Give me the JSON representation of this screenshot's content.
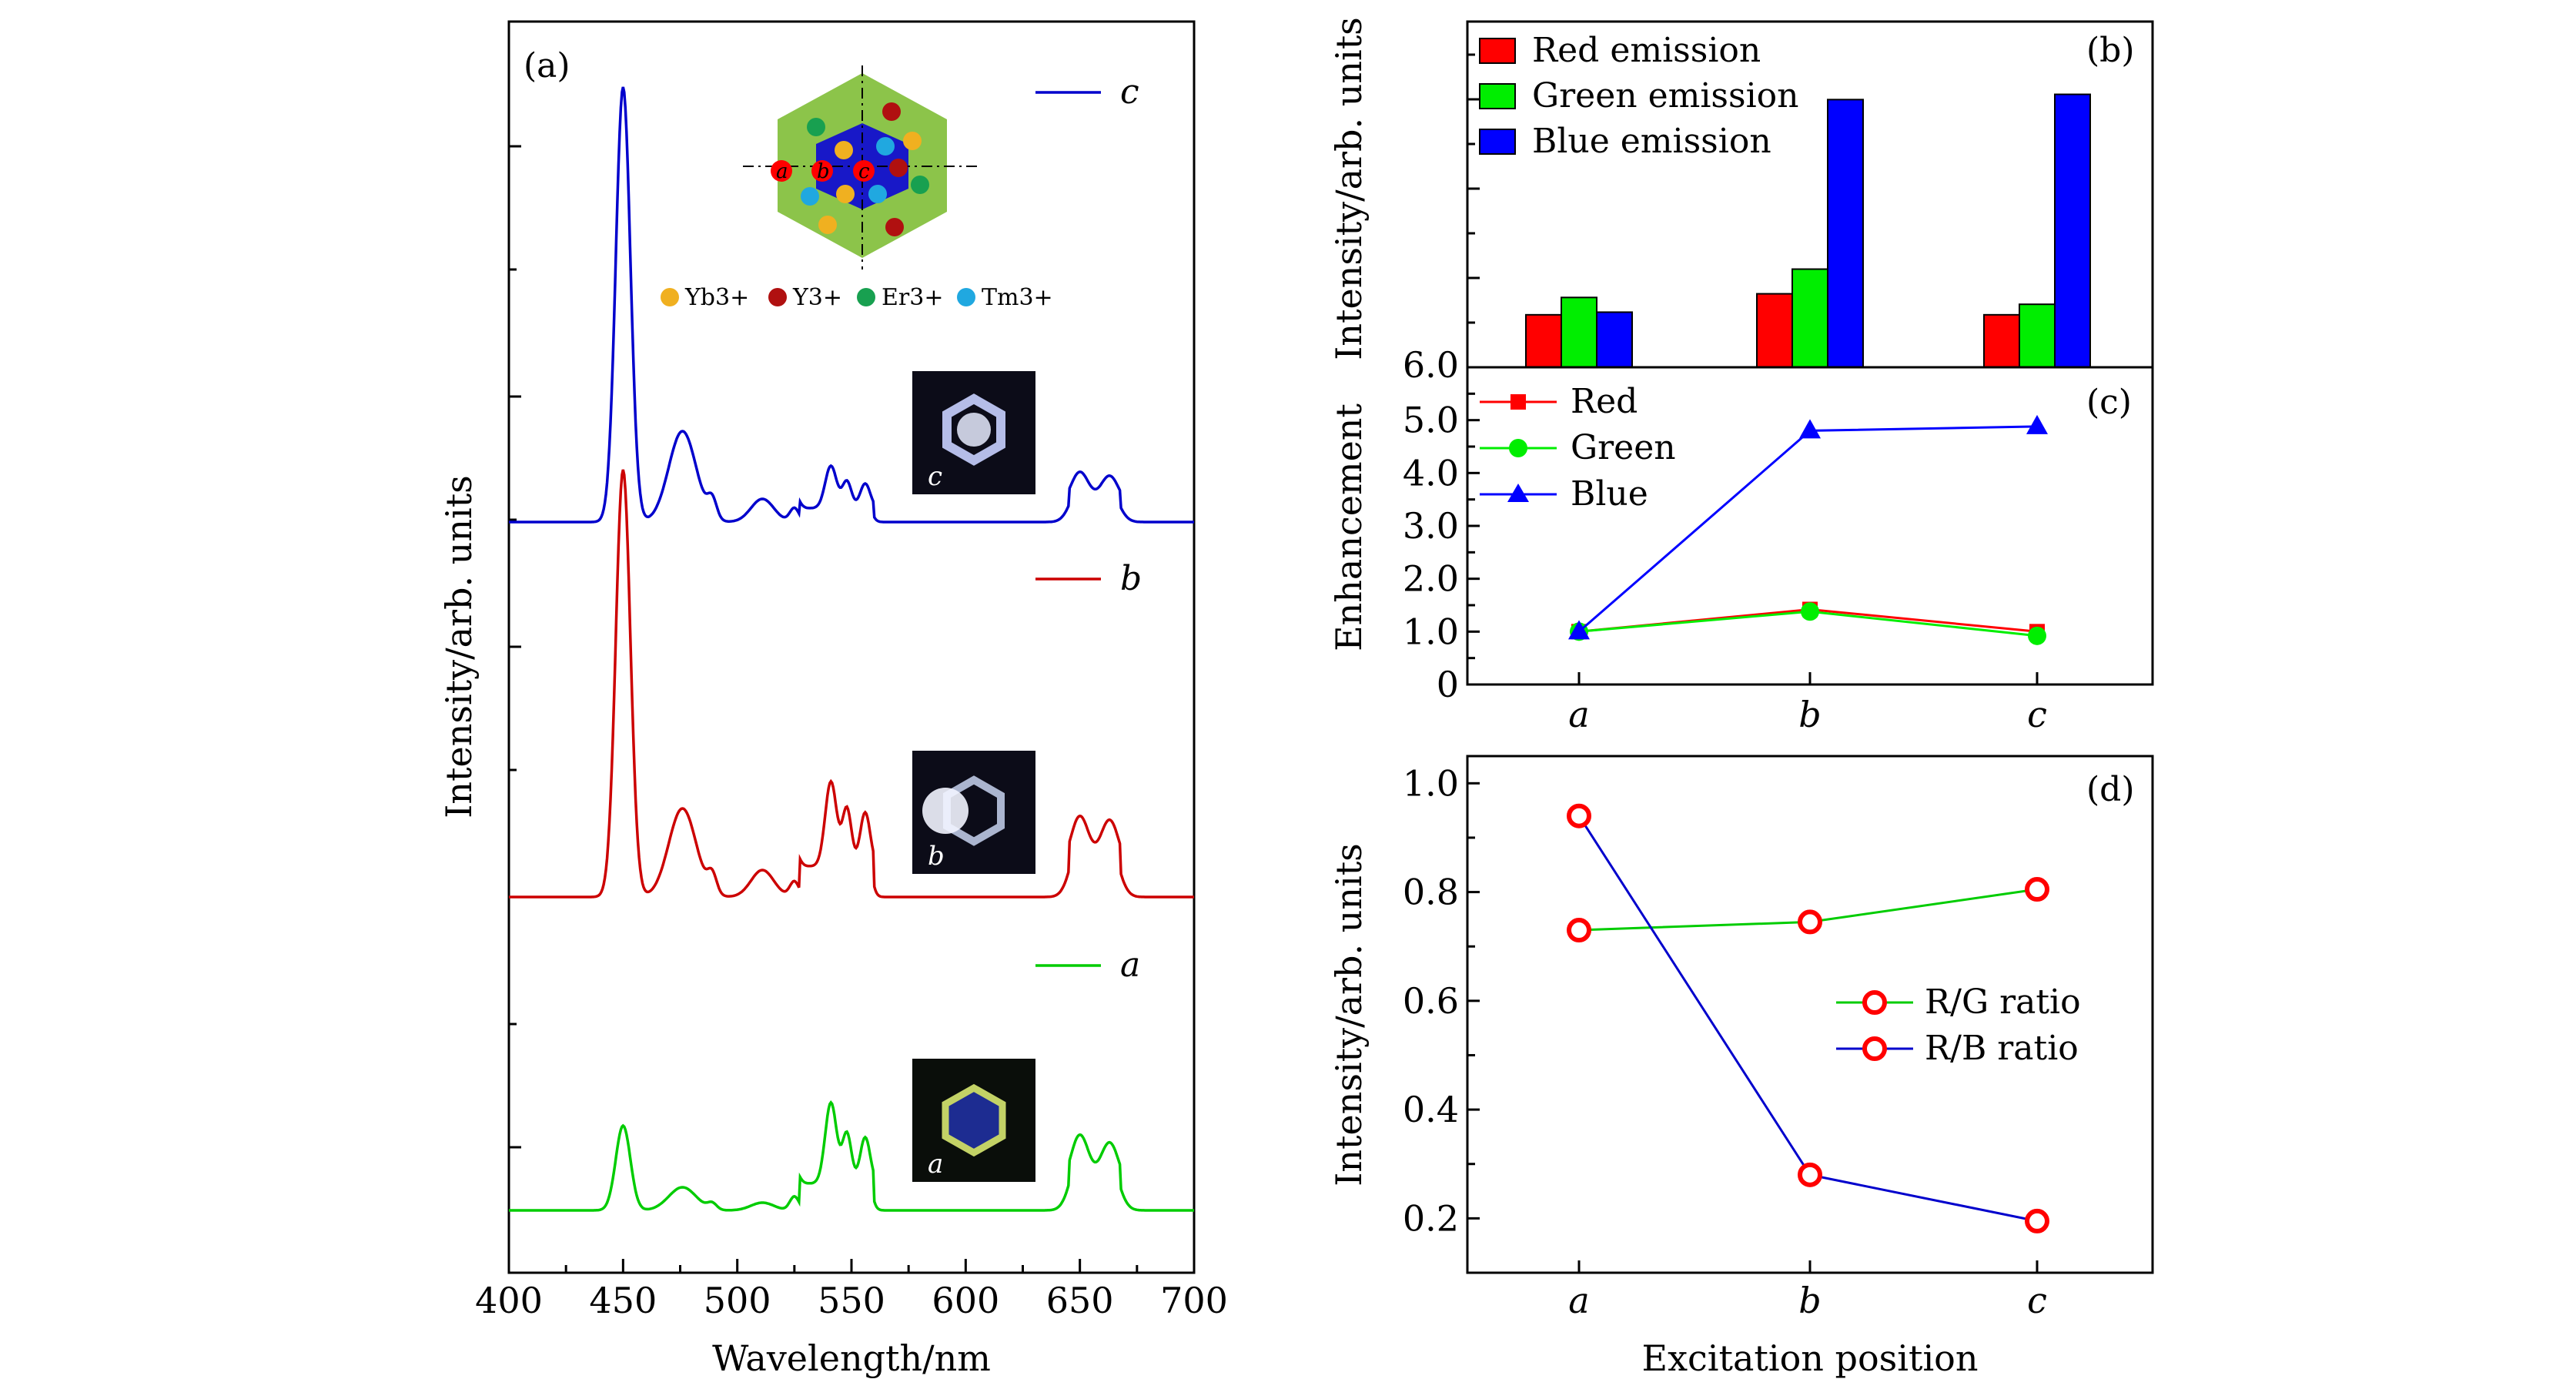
{
  "chart_data": [
    {
      "panel": "a",
      "type": "line",
      "panel_label": "(a)",
      "xlabel": "Wavelength/nm",
      "ylabel": "Intensity/arb. units",
      "xlim": [
        400,
        700
      ],
      "xticks": [
        "400",
        "450",
        "500",
        "550",
        "600",
        "650",
        "700"
      ],
      "series": [
        {
          "name": "c",
          "color": "#0000cc"
        },
        {
          "name": "b",
          "color": "#cc0000"
        },
        {
          "name": "a",
          "color": "#00cc00"
        }
      ],
      "inset_legend": [
        "Yb3+",
        "Y3+",
        "Er3+",
        "Tm3+"
      ],
      "inset_legend_colors": [
        "#f0b020",
        "#b01010",
        "#18a050",
        "#20a8e0"
      ],
      "hex_labels": [
        "a",
        "b",
        "c"
      ],
      "photo_labels": [
        "c",
        "b",
        "a"
      ]
    },
    {
      "panel": "b",
      "type": "bar",
      "panel_label": "(b)",
      "ylabel": "Intensity/arb. units",
      "categories": [
        "a",
        "b",
        "c"
      ],
      "series": [
        {
          "name": "Red emission",
          "color": "#ff0000",
          "values": [
            1.0,
            1.4,
            1.0
          ]
        },
        {
          "name": "Green emission",
          "color": "#00ee00",
          "values": [
            1.33,
            1.87,
            1.2
          ]
        },
        {
          "name": "Blue emission",
          "color": "#0000ff",
          "values": [
            1.05,
            5.1,
            5.2
          ]
        }
      ],
      "ylim": [
        0,
        6.0
      ],
      "ytick_label": "6.0"
    },
    {
      "panel": "c",
      "type": "line",
      "panel_label": "(c)",
      "ylabel": "Enhancement",
      "categories": [
        "a",
        "b",
        "c"
      ],
      "series": [
        {
          "name": "Red",
          "color": "#ff0000",
          "marker": "square",
          "values": [
            1.0,
            1.42,
            1.0
          ]
        },
        {
          "name": "Green",
          "color": "#00ee00",
          "marker": "circle",
          "values": [
            1.0,
            1.38,
            0.92
          ]
        },
        {
          "name": "Blue",
          "color": "#0000ff",
          "marker": "triangle",
          "values": [
            1.0,
            4.8,
            4.88
          ]
        }
      ],
      "ylim": [
        0,
        6.0
      ],
      "yticks": [
        "0",
        "1.0",
        "2.0",
        "3.0",
        "4.0",
        "5.0"
      ]
    },
    {
      "panel": "d",
      "type": "line",
      "panel_label": "(d)",
      "xlabel": "Excitation position",
      "ylabel": "Intensity/arb. units",
      "categories": [
        "a",
        "b",
        "c"
      ],
      "series": [
        {
          "name": "R/G ratio",
          "color": "#00cc00",
          "values": [
            0.73,
            0.745,
            0.805
          ]
        },
        {
          "name": "R/B ratio",
          "color": "#0000cc",
          "values": [
            0.94,
            0.28,
            0.195
          ]
        }
      ],
      "marker_color": "#ff0000",
      "ylim": [
        0.1,
        1.05
      ],
      "yticks": [
        "0.2",
        "0.4",
        "0.6",
        "0.8",
        "1.0"
      ]
    }
  ]
}
